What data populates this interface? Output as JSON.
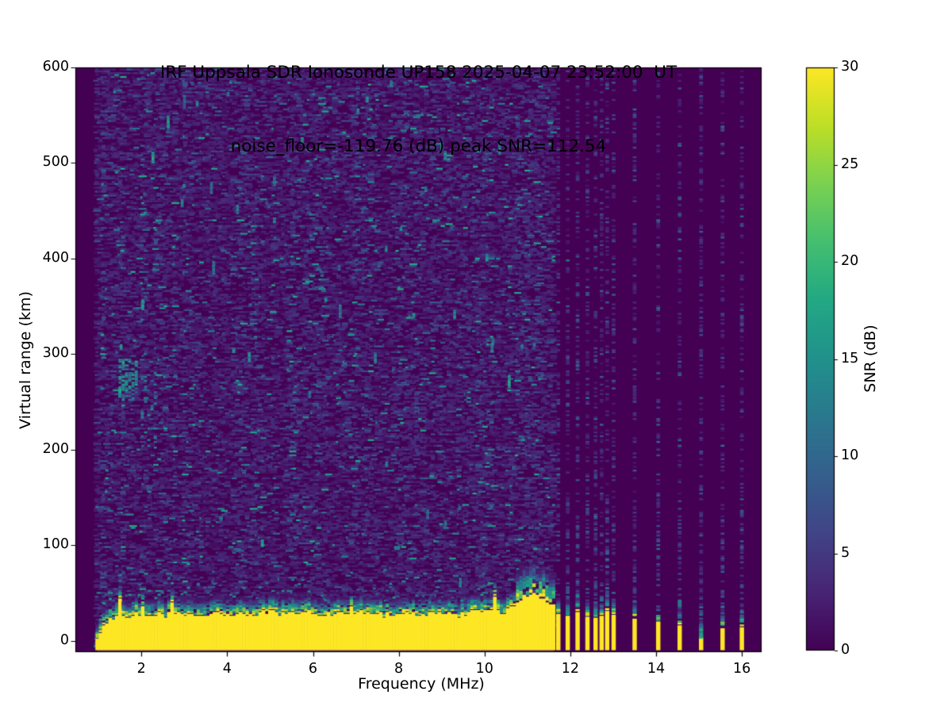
{
  "figure": {
    "title_line1": "IRF Uppsala SDR Ionosonde UP158 2025-04-07 23:52:00  UT",
    "title_line2": "noise_floor=-119.76 (dB) peak SNR=112.54",
    "station": "UP158",
    "timestamp_ut": "2025-04-07 23:52:00",
    "noise_floor_db": -119.76,
    "peak_snr_db": 112.54
  },
  "chart_data": {
    "type": "heatmap",
    "title": "IRF Uppsala SDR Ionosonde UP158 2025-04-07 23:52:00  UT",
    "subtitle": "noise_floor=-119.76 (dB) peak SNR=112.54",
    "xlabel": "Frequency (MHz)",
    "ylabel": "Virtual range (km)",
    "colorbar_label": "SNR (dB)",
    "xlim": [
      0.46,
      16.46
    ],
    "ylim": [
      -12,
      600
    ],
    "snr_range_db": [
      0,
      30
    ],
    "xticks": [
      2,
      4,
      6,
      8,
      10,
      12,
      14,
      16
    ],
    "yticks": [
      0,
      100,
      200,
      300,
      400,
      500,
      600
    ],
    "colorbar_ticks": [
      0,
      5,
      10,
      15,
      20,
      25,
      30
    ],
    "grid": false,
    "legend": "colorbar-right",
    "colormap": "viridis",
    "colormap_stops": [
      [
        0.0,
        "#440154"
      ],
      [
        0.1,
        "#482475"
      ],
      [
        0.2,
        "#414487"
      ],
      [
        0.3,
        "#355f8d"
      ],
      [
        0.4,
        "#2a788e"
      ],
      [
        0.5,
        "#21918c"
      ],
      [
        0.6,
        "#22a884"
      ],
      [
        0.7,
        "#44bf70"
      ],
      [
        0.8,
        "#7ad151"
      ],
      [
        0.9,
        "#bddf26"
      ],
      [
        1.0,
        "#fde725"
      ]
    ],
    "sweep": {
      "f_start_mhz": 0.97,
      "continuous_to_mhz": 11.62,
      "discrete_freqs_mhz": [
        11.72,
        11.94,
        12.17,
        12.4,
        12.59,
        12.73,
        12.86,
        13.01,
        13.5,
        14.05,
        14.55,
        15.05,
        15.55,
        16.0
      ]
    },
    "ground_clutter": {
      "description": "saturated (>=30 dB) ground echo band at the bottom of the plot",
      "profile_f_mhz": [
        0.97,
        1.0,
        1.05,
        1.12,
        1.2,
        1.3,
        1.4,
        1.5,
        1.6,
        1.75,
        1.9,
        2.0,
        2.2,
        2.4,
        2.6,
        2.8,
        3.0,
        3.2,
        3.5,
        3.8,
        4.0,
        4.3,
        4.6,
        5.0,
        5.4,
        5.8,
        6.2,
        6.6,
        7.0,
        7.4,
        7.8,
        8.2,
        8.6,
        9.0,
        9.4,
        9.8,
        10.0,
        10.2,
        10.4,
        10.6,
        10.8,
        10.95,
        11.1,
        11.25,
        11.4,
        11.55,
        11.62
      ],
      "profile_top_km": [
        1,
        4,
        9,
        15,
        21,
        25,
        23,
        28,
        25,
        27,
        30,
        27,
        26,
        29,
        26,
        31,
        27,
        26,
        28,
        30,
        27,
        29,
        27,
        30,
        28,
        31,
        28,
        27,
        30,
        28,
        27,
        30,
        28,
        29,
        27,
        30,
        34,
        31,
        29,
        33,
        41,
        47,
        49,
        45,
        41,
        37,
        35
      ],
      "spikes": [
        {
          "f": 1.52,
          "extra_km": 13
        },
        {
          "f": 2.06,
          "extra_km": 11
        },
        {
          "f": 2.72,
          "extra_km": 9
        },
        {
          "f": 6.9,
          "extra_km": 8
        },
        {
          "f": 10.22,
          "extra_km": 15
        }
      ],
      "transition_thickness_km": 12
    },
    "discrete_stripe_tops": [
      {
        "f": 11.72,
        "yellow_top_km": 28,
        "speckle_top_km": 46
      },
      {
        "f": 11.94,
        "yellow_top_km": 26,
        "speckle_top_km": 52
      },
      {
        "f": 12.17,
        "yellow_top_km": 30,
        "speckle_top_km": 48
      },
      {
        "f": 12.4,
        "yellow_top_km": 25,
        "speckle_top_km": 42
      },
      {
        "f": 12.59,
        "yellow_top_km": 24,
        "speckle_top_km": 40
      },
      {
        "f": 12.73,
        "yellow_top_km": 26,
        "speckle_top_km": 44
      },
      {
        "f": 12.86,
        "yellow_top_km": 31,
        "speckle_top_km": 95
      },
      {
        "f": 13.01,
        "yellow_top_km": 27,
        "speckle_top_km": 46
      },
      {
        "f": 13.5,
        "yellow_top_km": 23,
        "speckle_top_km": 42
      },
      {
        "f": 14.05,
        "yellow_top_km": 20,
        "speckle_top_km": 40
      },
      {
        "f": 14.55,
        "yellow_top_km": 16,
        "speckle_top_km": 40
      },
      {
        "f": 15.05,
        "yellow_top_km": 3,
        "speckle_top_km": 38,
        "weak": true
      },
      {
        "f": 15.55,
        "yellow_top_km": 13,
        "speckle_top_km": 40
      },
      {
        "f": 16.0,
        "yellow_top_km": 14,
        "speckle_top_km": 33
      }
    ],
    "noise_speckle": {
      "cell_f_mhz": 0.076,
      "cell_km": 2,
      "faint_db": [
        1,
        4
      ],
      "medium_db": [
        4,
        8
      ],
      "bright_db": [
        8,
        17
      ],
      "p_faint": 0.4,
      "p_medium": 0.07,
      "p_bright": 0.02,
      "vertical_streaks": 38
    },
    "echo_clusters": [
      {
        "f_mhz": [
          1.5,
          1.95
        ],
        "range_km": [
          252,
          294
        ],
        "snr_db": [
          9,
          18
        ],
        "density": 0.5
      },
      {
        "f_mhz": [
          2.02,
          2.4
        ],
        "range_km": [
          200,
          280
        ],
        "snr_db": [
          8,
          15
        ],
        "density": 0.18
      }
    ],
    "bright_spots": [
      {
        "f": 2.95,
        "km": 455
      },
      {
        "f": 4.15,
        "km": 302
      },
      {
        "f": 5.1,
        "km": 438
      },
      {
        "f": 6.3,
        "km": 356
      },
      {
        "f": 7.05,
        "km": 552
      },
      {
        "f": 8.35,
        "km": 338
      },
      {
        "f": 9.0,
        "km": 514
      },
      {
        "f": 3.3,
        "km": 560
      },
      {
        "f": 5.75,
        "km": 520
      },
      {
        "f": 8.05,
        "km": 430
      }
    ]
  }
}
